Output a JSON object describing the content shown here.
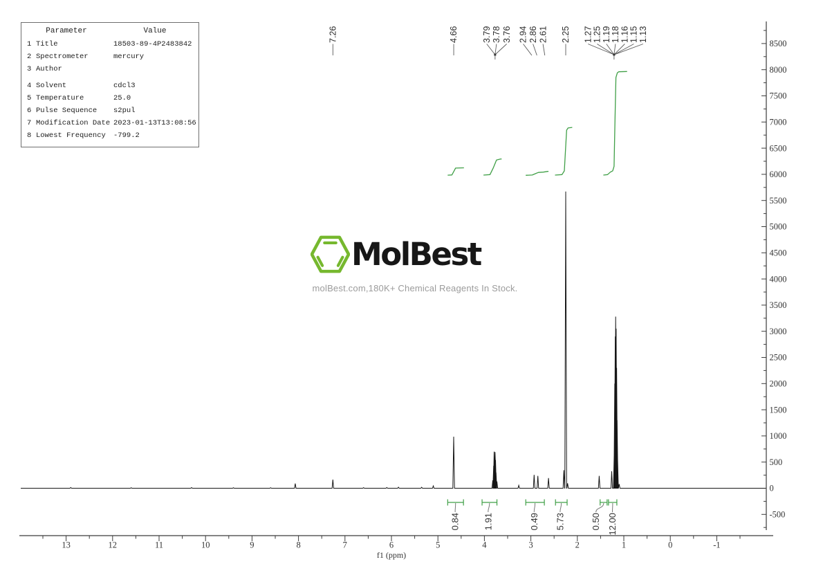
{
  "param_table": {
    "headers": [
      "Parameter",
      "Value"
    ],
    "rows": [
      {
        "num": "1",
        "label": "Title",
        "value": "18503-89-4P2483842"
      },
      {
        "num": "2",
        "label": "Spectrometer",
        "value": "mercury"
      },
      {
        "num": "3",
        "label": "Author",
        "value": ""
      },
      {
        "num": "4",
        "label": "Solvent",
        "value": "cdcl3"
      },
      {
        "num": "5",
        "label": "Temperature",
        "value": "25.0"
      },
      {
        "num": "6",
        "label": "Pulse Sequence",
        "value": "s2pul"
      },
      {
        "num": "7",
        "label": "Modification Date",
        "value": "2023-01-13T13:08:56"
      },
      {
        "num": "8",
        "label": "Lowest Frequency",
        "value": "-799.2"
      }
    ]
  },
  "logo": {
    "name": "MolBest",
    "tagline": "molBest.com,180K+ Chemical Reagents In Stock.",
    "green": "#76b82e",
    "text_color": "#171717"
  },
  "chart_data": {
    "type": "line",
    "description": "1H NMR spectrum",
    "x_axis": {
      "label": "f1 (ppm)",
      "ticks": [
        13,
        12,
        11,
        10,
        9,
        8,
        7,
        6,
        5,
        4,
        3,
        2,
        1,
        0,
        -1
      ],
      "range": [
        14.0,
        -2.2
      ],
      "minor_step": 0.5
    },
    "y_axis": {
      "ticks": [
        8500,
        8000,
        7500,
        7000,
        6500,
        6000,
        5500,
        5000,
        4500,
        4000,
        3500,
        3000,
        2500,
        2000,
        1500,
        1000,
        500,
        0,
        -500
      ],
      "range": [
        -900,
        8900
      ],
      "minor_step": 250
    },
    "grid": false,
    "peaks": [
      [
        12.9,
        14
      ],
      [
        11.6,
        10
      ],
      [
        10.3,
        13
      ],
      [
        9.4,
        10
      ],
      [
        8.6,
        10
      ],
      [
        8.07,
        90
      ],
      [
        7.26,
        165
      ],
      [
        6.6,
        12
      ],
      [
        6.1,
        14
      ],
      [
        5.85,
        20
      ],
      [
        5.35,
        18
      ],
      [
        5.1,
        45
      ],
      [
        4.66,
        985,
        1.2
      ],
      [
        3.82,
        150
      ],
      [
        3.8,
        430
      ],
      [
        3.79,
        700
      ],
      [
        3.78,
        560
      ],
      [
        3.77,
        690
      ],
      [
        3.76,
        540
      ],
      [
        3.75,
        300
      ],
      [
        3.73,
        130
      ],
      [
        3.26,
        55
      ],
      [
        2.93,
        255
      ],
      [
        2.85,
        235
      ],
      [
        2.62,
        195
      ],
      [
        2.29,
        345
      ],
      [
        2.25,
        5670,
        1.3
      ],
      [
        2.21,
        95
      ],
      [
        1.53,
        235
      ],
      [
        1.26,
        325
      ],
      [
        1.205,
        700,
        1.2
      ],
      [
        1.195,
        2000,
        1.2
      ],
      [
        1.185,
        2900,
        1.2
      ],
      [
        1.175,
        3280,
        1.2
      ],
      [
        1.165,
        3050,
        1.2
      ],
      [
        1.155,
        2300,
        1.2
      ],
      [
        1.145,
        1300,
        1.2
      ],
      [
        1.135,
        600,
        1.2
      ],
      [
        1.1,
        80
      ]
    ],
    "peak_label_groups": [
      {
        "items": [
          {
            "text": "7.26",
            "label_ppm": 7.26
          }
        ],
        "target_ppm": 7.26,
        "dot": false
      },
      {
        "items": [
          {
            "text": "4.66",
            "label_ppm": 4.66
          }
        ],
        "target_ppm": 4.66,
        "dot": false
      },
      {
        "items": [
          {
            "text": "3.79",
            "label_ppm": 3.95
          },
          {
            "text": "3.78",
            "label_ppm": 3.74
          },
          {
            "text": "3.76",
            "label_ppm": 3.52
          }
        ],
        "target_ppm": 3.77,
        "dot": true
      },
      {
        "items": [
          {
            "text": "2.94",
            "label_ppm": 3.165
          }
        ],
        "target_ppm": 2.98,
        "dot": false
      },
      {
        "items": [
          {
            "text": "2.86",
            "label_ppm": 2.955
          }
        ],
        "target_ppm": 2.87,
        "dot": false
      },
      {
        "items": [
          {
            "text": "2.61",
            "label_ppm": 2.74
          }
        ],
        "target_ppm": 2.7,
        "dot": false
      },
      {
        "items": [
          {
            "text": "2.25",
            "label_ppm": 2.25
          }
        ],
        "target_ppm": 2.25,
        "dot": false
      },
      {
        "items": [
          {
            "text": "1.27",
            "label_ppm": 1.77
          },
          {
            "text": "1.25",
            "label_ppm": 1.575
          },
          {
            "text": "1.19",
            "label_ppm": 1.375
          },
          {
            "text": "1.18",
            "label_ppm": 1.18
          },
          {
            "text": "1.16",
            "label_ppm": 0.98
          },
          {
            "text": "1.15",
            "label_ppm": 0.785
          },
          {
            "text": "1.13",
            "label_ppm": 0.585
          }
        ],
        "target_ppm": 1.21,
        "dot": true
      }
    ],
    "integrals": [
      {
        "from": 4.79,
        "to": 4.45,
        "value": "0.84",
        "label_ppm": 4.63
      },
      {
        "from": 4.05,
        "to": 3.73,
        "value": "1.91",
        "label_ppm": 3.92
      },
      {
        "from": 3.11,
        "to": 2.71,
        "value": "0.49",
        "label_ppm": 2.93
      },
      {
        "from": 2.47,
        "to": 2.22,
        "value": "5.73",
        "label_ppm": 2.37
      },
      {
        "from": 1.51,
        "to": 1.36,
        "value": "0.50",
        "label_ppm": 1.6
      },
      {
        "from": 1.33,
        "to": 1.15,
        "value": "12.00",
        "label_ppm": 1.245
      }
    ],
    "integral_curves": [
      [
        [
          4.79,
          0.03
        ],
        [
          4.7,
          0.06
        ],
        [
          4.66,
          0.45
        ],
        [
          4.62,
          0.88
        ],
        [
          4.44,
          0.92
        ]
      ],
      [
        [
          4.02,
          0.04
        ],
        [
          3.88,
          0.1
        ],
        [
          3.81,
          0.9
        ],
        [
          3.74,
          1.85
        ],
        [
          3.66,
          1.97
        ],
        [
          3.63,
          1.98
        ]
      ],
      [
        [
          3.11,
          0.02
        ],
        [
          2.97,
          0.05
        ],
        [
          2.9,
          0.22
        ],
        [
          2.84,
          0.36
        ],
        [
          2.73,
          0.4
        ],
        [
          2.64,
          0.48
        ],
        [
          2.62,
          0.49
        ]
      ],
      [
        [
          2.48,
          0.04
        ],
        [
          2.33,
          0.1
        ],
        [
          2.28,
          0.55
        ],
        [
          2.26,
          2.5
        ],
        [
          2.23,
          5.45
        ],
        [
          2.2,
          5.72
        ],
        [
          2.11,
          5.78
        ]
      ],
      [
        [
          1.44,
          0.04
        ],
        [
          1.35,
          0.1
        ],
        [
          1.29,
          0.4
        ],
        [
          1.24,
          0.55
        ],
        [
          1.21,
          1.1
        ],
        [
          1.19,
          6.5
        ],
        [
          1.17,
          11.8
        ],
        [
          1.14,
          12.35
        ],
        [
          1.11,
          12.48
        ],
        [
          0.93,
          12.52
        ]
      ]
    ],
    "colors": {
      "spectrum": "#161616",
      "integral": "#3f9f46",
      "axis": "#3a3a3a",
      "text": "#333333",
      "leader": "#5a5a5a"
    }
  }
}
